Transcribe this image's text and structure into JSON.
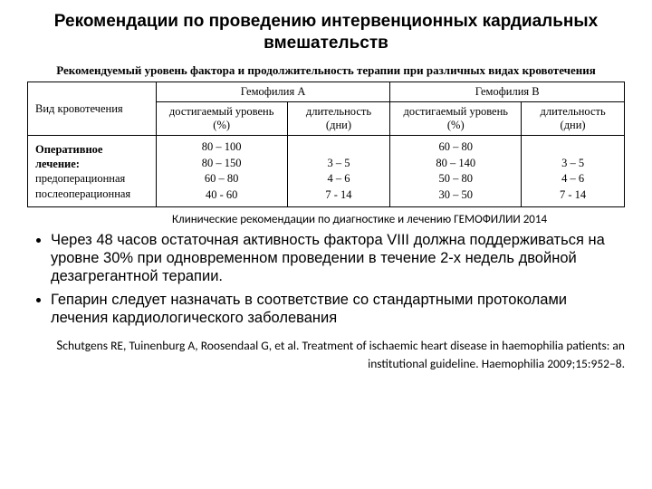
{
  "title": "Рекомендации по проведению интервенционных кардиальных вмешательств",
  "table": {
    "caption": "Рекомендуемый уровень фактора и продолжительность терапии при различных видах кровотечения",
    "rowHeader": "Вид кровотечения",
    "groupA": "Гемофилия А",
    "groupB": "Гемофилия В",
    "subLevel": "достигаемый уровень (%)",
    "subDuration": "длительность (дни)",
    "rowLabel1": "Оперативное лечение:",
    "rowLabel2": "предоперационная",
    "rowLabel3": "послеоперационная",
    "a_level": "80 – 100\n80 – 150\n60 – 80\n40 - 60",
    "a_dur": "\n3 – 5\n4 – 6\n7 - 14",
    "b_level": "60 – 80\n80 – 140\n50 – 80\n30 – 50",
    "b_dur": "\n3 – 5\n4 – 6\n7 - 14"
  },
  "note": "Клинические рекомендации по диагностике и лечению ГЕМОФИЛИИ 2014",
  "bullet1": "Через 48 часов остаточная активность фактора VIII должна поддерживаться на уровне 30% при одновременном проведении в течение 2-х недель двойной дезагрегантной терапии.",
  "bullet2": "Гепарин следует назначать в соответствие со стандартными протоколами лечения кардиологического заболевания",
  "citation": "Schutgens RE, Tuinenburg A, Roosendaal G, et al. Treatment of ischaemic heart disease in haemophilia patients: an institutional guideline. Haemophilia 2009;15:952–8."
}
